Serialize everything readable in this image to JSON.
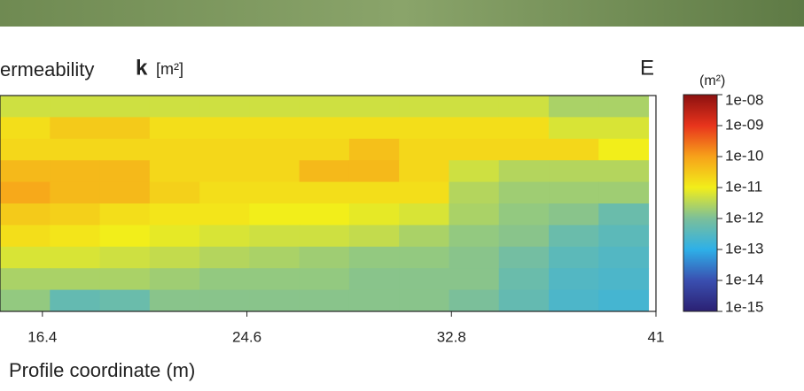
{
  "chart_data": {
    "type": "heatmap",
    "title": "ermeability",
    "variable": "k",
    "unit": "[m²]",
    "panel": "E",
    "xlabel": "Profile coordinate (m)",
    "xlim": [
      14.7,
      41
    ],
    "xticks": [
      16.4,
      24.6,
      32.8,
      41
    ],
    "x": [
      15.7,
      17.7,
      19.7,
      21.7,
      23.7,
      25.7,
      27.7,
      29.7,
      31.7,
      33.7,
      35.7,
      37.7,
      39.7
    ],
    "z": [
      [
        5e-12,
        5e-12,
        5e-12,
        5e-12,
        5e-12,
        5e-12,
        5e-12,
        5e-12,
        5e-12,
        5e-12,
        5e-12,
        2.5e-12,
        2.5e-12
      ],
      [
        1.6e-11,
        3e-11,
        3e-11,
        1.6e-11,
        1.6e-11,
        1.6e-11,
        1.6e-11,
        1.6e-11,
        1.6e-11,
        1.6e-11,
        1.6e-11,
        6e-12,
        6e-12
      ],
      [
        2e-11,
        2e-11,
        2e-11,
        2e-11,
        2e-11,
        2e-11,
        2e-11,
        4e-11,
        2e-11,
        2e-11,
        2e-11,
        2e-11,
        1e-11
      ],
      [
        5e-11,
        5e-11,
        5e-11,
        2e-11,
        2e-11,
        2e-11,
        5e-11,
        5e-11,
        2e-11,
        5e-12,
        3e-12,
        3e-12,
        3e-12
      ],
      [
        8e-11,
        5e-11,
        5e-11,
        2.5e-11,
        1.6e-11,
        1.6e-11,
        1.6e-11,
        1.6e-11,
        1.6e-11,
        3e-12,
        2e-12,
        2e-12,
        2e-12
      ],
      [
        3e-11,
        2.5e-11,
        1.6e-11,
        1.3e-11,
        1.3e-11,
        1e-11,
        1e-11,
        8e-12,
        6e-12,
        2.5e-12,
        1.6e-12,
        1.3e-12,
        6e-13
      ],
      [
        1.6e-11,
        1.3e-11,
        1e-11,
        8e-12,
        6e-12,
        5e-12,
        5e-12,
        4e-12,
        2.5e-12,
        1.6e-12,
        1.3e-12,
        6e-13,
        4e-13
      ],
      [
        6e-12,
        6e-12,
        5e-12,
        4e-12,
        3e-12,
        2.5e-12,
        2e-12,
        1.6e-12,
        1.6e-12,
        1.3e-12,
        8e-13,
        4e-13,
        3e-13
      ],
      [
        2.5e-12,
        2.5e-12,
        2.5e-12,
        2e-12,
        1.6e-12,
        1.6e-12,
        1.6e-12,
        1.3e-12,
        1.3e-12,
        1.3e-12,
        6e-13,
        3e-13,
        2.5e-13
      ],
      [
        1.6e-12,
        5e-13,
        6e-13,
        1.3e-12,
        1.3e-12,
        1.3e-12,
        1.3e-12,
        1.3e-12,
        1.3e-12,
        1e-12,
        5e-13,
        2.5e-13,
        2e-13
      ]
    ],
    "colorbar_label": "(m²)",
    "clim": [
      1e-15,
      1e-08
    ],
    "log_scale": true,
    "colors": [
      "#2b2072",
      "#3a4fb0",
      "#2eb0e8",
      "#7bbf9a",
      "#f2ee1a",
      "#f7a21a",
      "#e8341c",
      "#8c1010"
    ],
    "cticks": [
      {
        "value": 1e-08,
        "label": "1e-08"
      },
      {
        "value": 1e-09,
        "label": "1e-09"
      },
      {
        "value": 1e-10,
        "label": "1e-10"
      },
      {
        "value": 1e-11,
        "label": "1e-11"
      },
      {
        "value": 1e-12,
        "label": "1e-12"
      },
      {
        "value": 1e-13,
        "label": "1e-13"
      },
      {
        "value": 1e-14,
        "label": "1e-14"
      },
      {
        "value": 1e-15,
        "label": "1e-15"
      }
    ]
  }
}
